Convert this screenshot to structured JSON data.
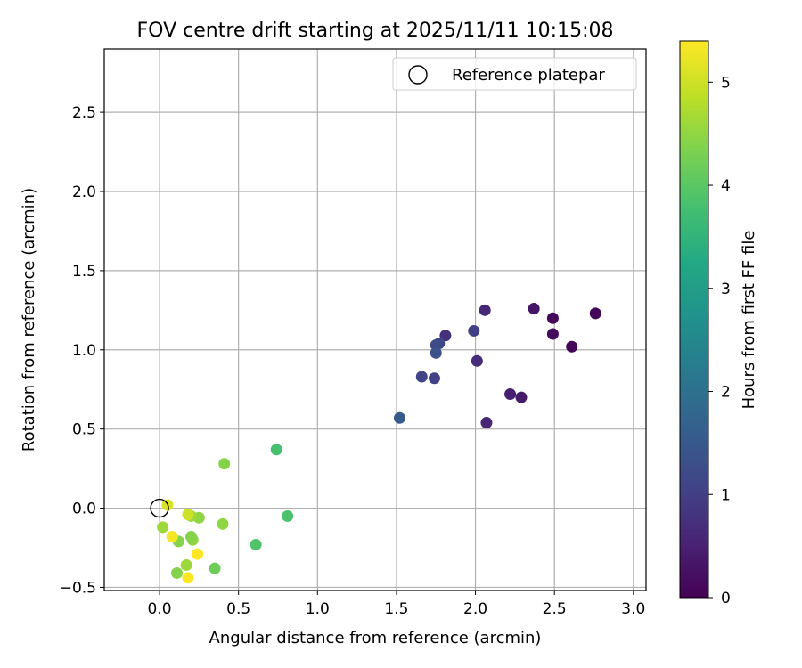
{
  "chart_data": {
    "type": "scatter",
    "title": "FOV centre drift starting at 2025/11/11 10:15:08",
    "xlabel": "Angular distance from reference (arcmin)",
    "ylabel": "Rotation from reference (arcmin)",
    "xlim": [
      -0.35,
      3.08
    ],
    "ylim": [
      -0.52,
      2.9
    ],
    "xticks": [
      0.0,
      0.5,
      1.0,
      1.5,
      2.0,
      2.5,
      3.0
    ],
    "xtick_labels": [
      "0.0",
      "0.5",
      "1.0",
      "1.5",
      "2.0",
      "2.5",
      "3.0"
    ],
    "yticks": [
      -0.5,
      0.0,
      0.5,
      1.0,
      1.5,
      2.0,
      2.5
    ],
    "ytick_labels": [
      "−0.5",
      "0.0",
      "0.5",
      "1.0",
      "1.5",
      "2.0",
      "2.5"
    ],
    "grid": true,
    "legend": {
      "placement": "top-right",
      "entries": [
        "Reference platepar"
      ]
    },
    "reference_point": {
      "x": 0.0,
      "y": 0.0,
      "label": "Reference platepar"
    },
    "colorbar": {
      "label": "Hours from first FF file",
      "colormap": "viridis",
      "range": [
        0,
        5.4
      ],
      "ticks": [
        0,
        1,
        2,
        3,
        4,
        5
      ],
      "tick_labels": [
        "0",
        "1",
        "2",
        "3",
        "4",
        "5"
      ]
    },
    "series": [
      {
        "points": [
          {
            "x": 2.76,
            "y": 1.23,
            "c": 0.05
          },
          {
            "x": 2.61,
            "y": 1.02,
            "c": 0.08
          },
          {
            "x": 2.49,
            "y": 1.2,
            "c": 0.12
          },
          {
            "x": 2.49,
            "y": 1.1,
            "c": 0.15
          },
          {
            "x": 2.37,
            "y": 1.26,
            "c": 0.3
          },
          {
            "x": 2.29,
            "y": 0.7,
            "c": 0.4
          },
          {
            "x": 2.22,
            "y": 0.72,
            "c": 0.45
          },
          {
            "x": 2.07,
            "y": 0.54,
            "c": 0.55
          },
          {
            "x": 2.06,
            "y": 1.25,
            "c": 0.6
          },
          {
            "x": 2.01,
            "y": 0.93,
            "c": 0.7
          },
          {
            "x": 1.81,
            "y": 1.09,
            "c": 0.75
          },
          {
            "x": 1.99,
            "y": 1.12,
            "c": 1.0
          },
          {
            "x": 1.74,
            "y": 0.82,
            "c": 1.05
          },
          {
            "x": 1.66,
            "y": 0.83,
            "c": 1.1
          },
          {
            "x": 1.77,
            "y": 1.04,
            "c": 1.2
          },
          {
            "x": 1.75,
            "y": 1.03,
            "c": 1.25
          },
          {
            "x": 1.75,
            "y": 0.98,
            "c": 1.35
          },
          {
            "x": 1.52,
            "y": 0.57,
            "c": 1.5
          },
          {
            "x": 0.74,
            "y": 0.37,
            "c": 3.8
          },
          {
            "x": 0.81,
            "y": -0.05,
            "c": 3.85
          },
          {
            "x": 0.61,
            "y": -0.23,
            "c": 3.9
          },
          {
            "x": 0.35,
            "y": -0.38,
            "c": 4.2
          },
          {
            "x": 0.41,
            "y": 0.28,
            "c": 4.4
          },
          {
            "x": 0.4,
            "y": -0.1,
            "c": 4.5
          },
          {
            "x": 0.25,
            "y": -0.06,
            "c": 4.5
          },
          {
            "x": 0.21,
            "y": -0.2,
            "c": 4.5
          },
          {
            "x": 0.2,
            "y": -0.18,
            "c": 4.4
          },
          {
            "x": 0.12,
            "y": -0.21,
            "c": 4.4
          },
          {
            "x": 0.11,
            "y": -0.41,
            "c": 4.4
          },
          {
            "x": 0.17,
            "y": -0.36,
            "c": 4.6
          },
          {
            "x": 0.02,
            "y": -0.12,
            "c": 4.6
          },
          {
            "x": 0.2,
            "y": -0.05,
            "c": 4.6
          },
          {
            "x": 0.18,
            "y": -0.04,
            "c": 5.0
          },
          {
            "x": 0.05,
            "y": 0.02,
            "c": 5.1
          },
          {
            "x": 0.08,
            "y": -0.18,
            "c": 5.35
          },
          {
            "x": 0.24,
            "y": -0.29,
            "c": 5.4
          },
          {
            "x": 0.18,
            "y": -0.44,
            "c": 5.4
          }
        ]
      }
    ]
  }
}
